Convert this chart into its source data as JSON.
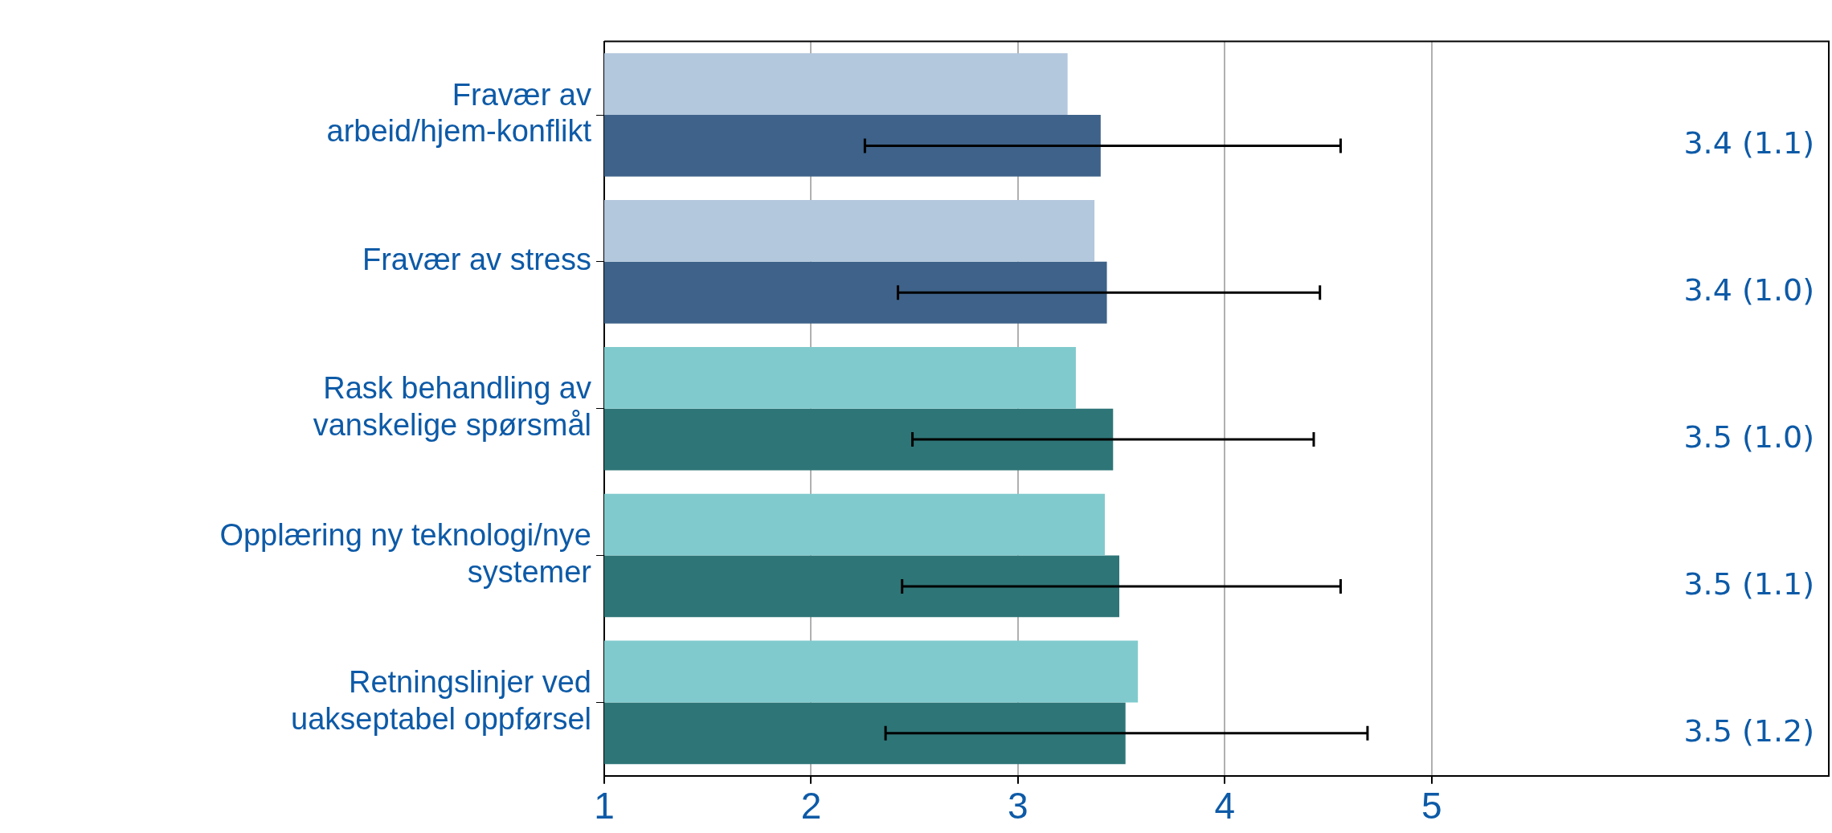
{
  "chart_data": {
    "type": "bar",
    "orientation": "horizontal",
    "categories": [
      "Fravær av arbeid/hjem-konflikt",
      "Fravær av stress",
      "Rask behandling av vanskelige spørsmål",
      "Opplæring ny teknologi/nye systemer",
      "Retningslinjer ved uakseptabel oppførsel"
    ],
    "series": [
      {
        "colors": [
          "#b3c7dd",
          "#b3c7dd",
          "#80cacd",
          "#80cacd",
          "#80cacd"
        ],
        "values": [
          3.24,
          3.37,
          3.28,
          3.42,
          3.58
        ]
      },
      {
        "colors": [
          "#3e6289",
          "#3e6289",
          "#2e7577",
          "#2e7577",
          "#2e7577"
        ],
        "values": [
          3.4,
          3.43,
          3.46,
          3.49,
          3.52
        ],
        "errors": [
          [
            2.26,
            4.56
          ],
          [
            2.42,
            4.46
          ],
          [
            2.49,
            4.43
          ],
          [
            2.44,
            4.56
          ],
          [
            2.36,
            4.69
          ]
        ],
        "value_labels": [
          "3.4 (1.1)",
          "3.4 (1.0)",
          "3.5 (1.0)",
          "3.5 (1.1)",
          "3.5 (1.2)"
        ]
      }
    ],
    "xlim": [
      1,
      6.92
    ],
    "xticks": [
      1,
      2,
      3,
      4,
      5
    ],
    "grid": "x",
    "legend": false
  }
}
